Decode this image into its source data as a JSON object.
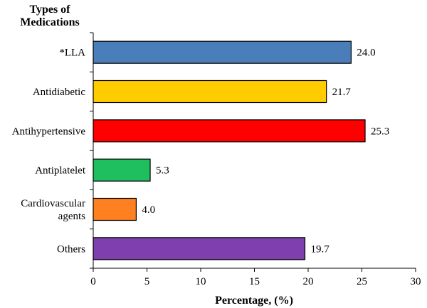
{
  "chart_data": {
    "type": "bar",
    "orientation": "horizontal",
    "ylabel": "Types of Medications",
    "xlabel": "Percentage, (%)",
    "xlim": [
      0,
      30
    ],
    "x_ticks": [
      "0",
      "5",
      "10",
      "15",
      "20",
      "25",
      "30"
    ],
    "grid": false,
    "categories": [
      [
        "*LLA"
      ],
      [
        "Antidiabetic"
      ],
      [
        "Antihypertensive"
      ],
      [
        "Antiplatelet"
      ],
      [
        "Cardiovascular",
        "agents"
      ],
      [
        "Others"
      ]
    ],
    "values": [
      24.0,
      21.7,
      25.3,
      5.3,
      4.0,
      19.7
    ],
    "data_labels": [
      "24.0",
      "21.7",
      "25.3",
      "5.3",
      "4.0",
      "19.7"
    ],
    "colors": [
      "#4a7ebb",
      "#ffcc00",
      "#ff0000",
      "#1fbf5f",
      "#ff8020",
      "#7f3fae"
    ]
  }
}
